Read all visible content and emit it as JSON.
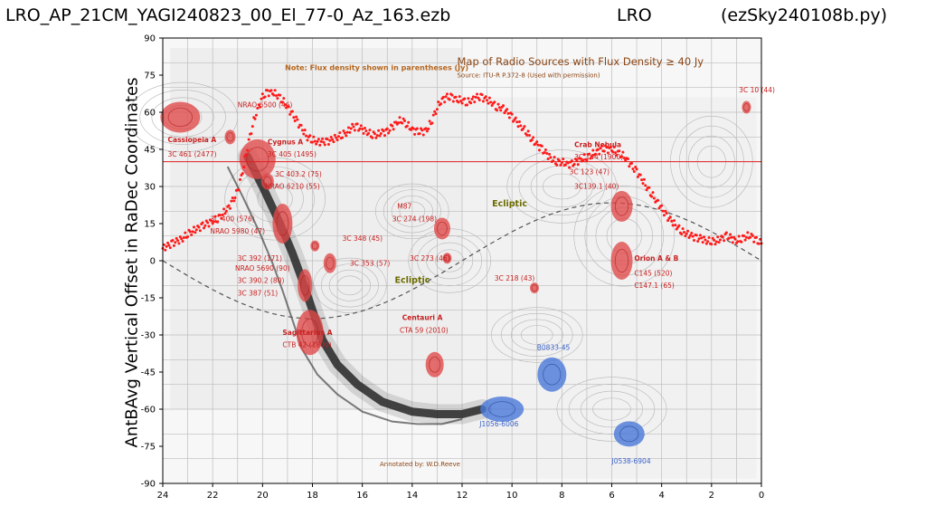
{
  "header": {
    "left": "LRO_AP_21CM_YAGI240823_00_El_77-0_Az_163.ezb",
    "middle": "LRO",
    "right": "(ezSky240108b.py)"
  },
  "chart_data": {
    "type": "scatter",
    "title": "",
    "xlabel": "",
    "ylabel": "AntBAvg Vertical Offset in RaDec Coordinates",
    "xlim": [
      24,
      0
    ],
    "ylim": [
      -90,
      90
    ],
    "x_ticks": [
      "24",
      "22",
      "20",
      "18",
      "16",
      "14",
      "12",
      "10",
      "8",
      "6",
      "4",
      "2",
      "0"
    ],
    "y_ticks": [
      "90",
      "75",
      "60",
      "45",
      "30",
      "15",
      "0",
      "-15",
      "-30",
      "-45",
      "-60",
      "-75",
      "-90"
    ],
    "reference_line_y": 40,
    "reference_line_color": "#e02020",
    "point_color": "#ff1a1a",
    "series": [
      {
        "points": [
          [
            24.0,
            5
          ],
          [
            23.8,
            6
          ],
          [
            23.6,
            7
          ],
          [
            23.4,
            8
          ],
          [
            23.2,
            9
          ],
          [
            23.0,
            11
          ],
          [
            22.8,
            12
          ],
          [
            22.6,
            13
          ],
          [
            22.4,
            14
          ],
          [
            22.2,
            15
          ],
          [
            22.0,
            16
          ],
          [
            21.8,
            17
          ],
          [
            21.6,
            19
          ],
          [
            21.4,
            21
          ],
          [
            21.2,
            24
          ],
          [
            21.0,
            28
          ],
          [
            20.8,
            36
          ],
          [
            20.6,
            46
          ],
          [
            20.4,
            55
          ],
          [
            20.2,
            61
          ],
          [
            20.0,
            66
          ],
          [
            19.8,
            68
          ],
          [
            19.6,
            68
          ],
          [
            19.4,
            67
          ],
          [
            19.2,
            65
          ],
          [
            19.0,
            62
          ],
          [
            18.8,
            59
          ],
          [
            18.6,
            56
          ],
          [
            18.4,
            53
          ],
          [
            18.2,
            50
          ],
          [
            18.0,
            49
          ],
          [
            17.8,
            48
          ],
          [
            17.6,
            48
          ],
          [
            17.4,
            48
          ],
          [
            17.2,
            49
          ],
          [
            17.0,
            50
          ],
          [
            16.8,
            51
          ],
          [
            16.6,
            52
          ],
          [
            16.4,
            54
          ],
          [
            16.2,
            54
          ],
          [
            16.0,
            53
          ],
          [
            15.8,
            52
          ],
          [
            15.6,
            51
          ],
          [
            15.4,
            51
          ],
          [
            15.2,
            52
          ],
          [
            15.0,
            52
          ],
          [
            14.8,
            54
          ],
          [
            14.6,
            56
          ],
          [
            14.4,
            57
          ],
          [
            14.2,
            55
          ],
          [
            14.0,
            53
          ],
          [
            13.8,
            52
          ],
          [
            13.6,
            52
          ],
          [
            13.4,
            53
          ],
          [
            13.2,
            57
          ],
          [
            13.0,
            62
          ],
          [
            12.8,
            65
          ],
          [
            12.6,
            66
          ],
          [
            12.4,
            66
          ],
          [
            12.2,
            65
          ],
          [
            12.0,
            65
          ],
          [
            11.8,
            64
          ],
          [
            11.6,
            65
          ],
          [
            11.4,
            66
          ],
          [
            11.2,
            66
          ],
          [
            11.0,
            65
          ],
          [
            10.8,
            64
          ],
          [
            10.6,
            62
          ],
          [
            10.4,
            62
          ],
          [
            10.2,
            60
          ],
          [
            10.0,
            58
          ],
          [
            9.8,
            56
          ],
          [
            9.6,
            54
          ],
          [
            9.4,
            52
          ],
          [
            9.2,
            49
          ],
          [
            9.0,
            47
          ],
          [
            8.8,
            45
          ],
          [
            8.6,
            43
          ],
          [
            8.4,
            41
          ],
          [
            8.2,
            40
          ],
          [
            8.0,
            40
          ],
          [
            7.8,
            39
          ],
          [
            7.6,
            39
          ],
          [
            7.4,
            40
          ],
          [
            7.2,
            41
          ],
          [
            7.0,
            42
          ],
          [
            6.8,
            43
          ],
          [
            6.6,
            44
          ],
          [
            6.4,
            45
          ],
          [
            6.2,
            45
          ],
          [
            6.0,
            45
          ],
          [
            5.8,
            44
          ],
          [
            5.6,
            43
          ],
          [
            5.4,
            41
          ],
          [
            5.2,
            38
          ],
          [
            5.0,
            36
          ],
          [
            4.8,
            33
          ],
          [
            4.6,
            30
          ],
          [
            4.4,
            27
          ],
          [
            4.2,
            24
          ],
          [
            4.0,
            21
          ],
          [
            3.8,
            18
          ],
          [
            3.6,
            16
          ],
          [
            3.4,
            14
          ],
          [
            3.2,
            12
          ],
          [
            3.0,
            11
          ],
          [
            2.8,
            10
          ],
          [
            2.6,
            9
          ],
          [
            2.4,
            9
          ],
          [
            2.2,
            8
          ],
          [
            2.0,
            8
          ],
          [
            1.8,
            8
          ],
          [
            1.6,
            9
          ],
          [
            1.4,
            10
          ],
          [
            1.2,
            9
          ],
          [
            1.0,
            8
          ],
          [
            0.8,
            9
          ],
          [
            0.6,
            10
          ],
          [
            0.4,
            10
          ],
          [
            0.2,
            8
          ],
          [
            0.0,
            7
          ]
        ]
      }
    ],
    "map_overlay": {
      "header_note": "Note: Flux density shown in parentheses (Jy)",
      "map_title": "Map of Radio Sources with Flux Density ≥ 40 Jy",
      "map_source": "Source: ITU-R P.372-8 (Used with permission)",
      "annotated_by": "Annotated by: W.D.Reeve",
      "ecliptic_label": "Ecliptic",
      "labels": [
        {
          "text": "Cassiopeia A",
          "x": 23.8,
          "y": 48,
          "color": "#c81e1e",
          "bold": true
        },
        {
          "text": "3C 461 (2477)",
          "x": 23.8,
          "y": 42,
          "color": "#c81e1e"
        },
        {
          "text": "NRAO 6500 (46)",
          "x": 21.0,
          "y": 62,
          "color": "#c81e1e"
        },
        {
          "text": "Cygnus A",
          "x": 19.8,
          "y": 47,
          "color": "#c81e1e",
          "bold": true
        },
        {
          "text": "3C 405 (1495)",
          "x": 19.8,
          "y": 42,
          "color": "#c81e1e"
        },
        {
          "text": "3C 403.2 (75)",
          "x": 19.5,
          "y": 34,
          "color": "#c81e1e"
        },
        {
          "text": "NRAO 6210 (55)",
          "x": 19.9,
          "y": 29,
          "color": "#c81e1e"
        },
        {
          "text": "3C 400 (576)",
          "x": 22.1,
          "y": 16,
          "color": "#c81e1e"
        },
        {
          "text": "NRAO 5980 (47)",
          "x": 22.1,
          "y": 11,
          "color": "#c81e1e"
        },
        {
          "text": "3C 392 (171)",
          "x": 21.0,
          "y": 0,
          "color": "#c81e1e"
        },
        {
          "text": "NRAO 5690 (90)",
          "x": 21.1,
          "y": -4,
          "color": "#c81e1e"
        },
        {
          "text": "3C 390.2 (80)",
          "x": 21.0,
          "y": -9,
          "color": "#c81e1e"
        },
        {
          "text": "3C 387 (51)",
          "x": 21.0,
          "y": -14,
          "color": "#c81e1e"
        },
        {
          "text": "Sagittarius A",
          "x": 19.2,
          "y": -30,
          "color": "#c81e1e",
          "bold": true
        },
        {
          "text": "CTB 42 (1800)",
          "x": 19.2,
          "y": -35,
          "color": "#c81e1e"
        },
        {
          "text": "3C 348 (45)",
          "x": 16.8,
          "y": 8,
          "color": "#c81e1e"
        },
        {
          "text": "3C 353 (57)",
          "x": 16.5,
          "y": -2,
          "color": "#c81e1e"
        },
        {
          "text": "M87",
          "x": 14.6,
          "y": 21,
          "color": "#c81e1e"
        },
        {
          "text": "3C 274 (198)",
          "x": 14.8,
          "y": 16,
          "color": "#c81e1e"
        },
        {
          "text": "3C 273 (46)",
          "x": 14.1,
          "y": 0,
          "color": "#c81e1e"
        },
        {
          "text": "Centauri A",
          "x": 14.4,
          "y": -24,
          "color": "#c81e1e",
          "bold": true
        },
        {
          "text": "CTA 59 (2010)",
          "x": 14.5,
          "y": -29,
          "color": "#c81e1e"
        },
        {
          "text": "3C 218 (43)",
          "x": 10.7,
          "y": -8,
          "color": "#c81e1e"
        },
        {
          "text": "Crab Nebula",
          "x": 7.5,
          "y": 46,
          "color": "#c81e1e",
          "bold": true
        },
        {
          "text": "3C 144 (1900)",
          "x": 7.5,
          "y": 41,
          "color": "#c81e1e"
        },
        {
          "text": "3C 123 (47)",
          "x": 7.7,
          "y": 35,
          "color": "#c81e1e"
        },
        {
          "text": "3C139.1 (40)",
          "x": 7.5,
          "y": 29,
          "color": "#c81e1e"
        },
        {
          "text": "Orion A & B",
          "x": 5.1,
          "y": 0,
          "color": "#c81e1e",
          "bold": true
        },
        {
          "text": "C145 (520)",
          "x": 5.1,
          "y": -6,
          "color": "#c81e1e"
        },
        {
          "text": "C147.1 (65)",
          "x": 5.1,
          "y": -11,
          "color": "#c81e1e"
        },
        {
          "text": "3C 10 (44)",
          "x": 0.9,
          "y": 68,
          "color": "#c81e1e"
        },
        {
          "text": "B0833-45",
          "x": 9.0,
          "y": -36,
          "color": "#3a62c9"
        },
        {
          "text": "J1056-6006",
          "x": 11.3,
          "y": -67,
          "color": "#3a62c9"
        },
        {
          "text": "J0538-6904",
          "x": 6.0,
          "y": -82,
          "color": "#3a62c9"
        }
      ],
      "red_blobs": [
        {
          "x": 23.3,
          "y": 58,
          "rx": 22,
          "ry": 17
        },
        {
          "x": 21.3,
          "y": 50,
          "rx": 6,
          "ry": 8
        },
        {
          "x": 20.2,
          "y": 41,
          "rx": 20,
          "ry": 22
        },
        {
          "x": 19.8,
          "y": 32,
          "rx": 7,
          "ry": 9
        },
        {
          "x": 19.2,
          "y": 15,
          "rx": 11,
          "ry": 22
        },
        {
          "x": 17.9,
          "y": 6,
          "rx": 5,
          "ry": 6
        },
        {
          "x": 17.3,
          "y": -1,
          "rx": 7,
          "ry": 11
        },
        {
          "x": 18.3,
          "y": -10,
          "rx": 8,
          "ry": 18
        },
        {
          "x": 18.1,
          "y": -29,
          "rx": 15,
          "ry": 25
        },
        {
          "x": 13.1,
          "y": -42,
          "rx": 10,
          "ry": 14
        },
        {
          "x": 12.8,
          "y": 13,
          "rx": 9,
          "ry": 12
        },
        {
          "x": 12.6,
          "y": 1,
          "rx": 5,
          "ry": 6
        },
        {
          "x": 9.1,
          "y": -11,
          "rx": 5,
          "ry": 6
        },
        {
          "x": 5.6,
          "y": 22,
          "rx": 12,
          "ry": 17
        },
        {
          "x": 5.6,
          "y": 0,
          "rx": 12,
          "ry": 21
        },
        {
          "x": 0.6,
          "y": 62,
          "rx": 5,
          "ry": 7
        }
      ],
      "blue_blobs": [
        {
          "x": 8.4,
          "y": -46,
          "rx": 16,
          "ry": 19
        },
        {
          "x": 10.4,
          "y": -60,
          "rx": 24,
          "ry": 14
        },
        {
          "x": 5.3,
          "y": -70,
          "rx": 17,
          "ry": 14
        }
      ]
    }
  }
}
